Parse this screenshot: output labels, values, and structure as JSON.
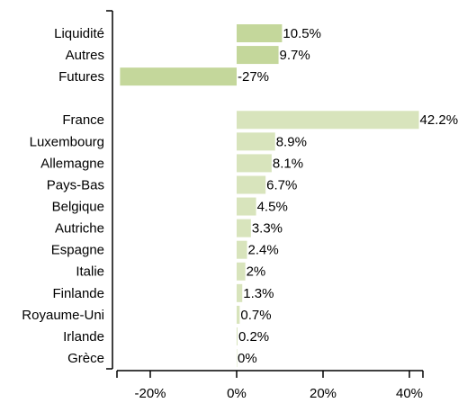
{
  "chart_data": {
    "type": "bar",
    "orientation": "horizontal",
    "categories": [
      "Liquidité",
      "Autres",
      "Futures",
      null,
      "France",
      "Luxembourg",
      "Allemagne",
      "Pays-Bas",
      "Belgique",
      "Autriche",
      "Espagne",
      "Italie",
      "Finlande",
      "Royaume-Uni",
      "Irlande",
      "Grèce"
    ],
    "values": [
      10.5,
      9.7,
      -27,
      null,
      42.2,
      8.9,
      8.1,
      6.7,
      4.5,
      3.3,
      2.4,
      2,
      1.3,
      0.7,
      0.2,
      0
    ],
    "value_labels": [
      "10.5%",
      "9.7%",
      "-27%",
      null,
      "42.2%",
      "8.9%",
      "8.1%",
      "6.7%",
      "4.5%",
      "3.3%",
      "2.4%",
      "2%",
      "1.3%",
      "0.7%",
      "0.2%",
      "0%"
    ],
    "colors": [
      "#c4d79b",
      "#c4d79b",
      "#c4d79b",
      null,
      "#d8e4bc",
      "#d8e4bc",
      "#d8e4bc",
      "#d8e4bc",
      "#d8e4bc",
      "#d8e4bc",
      "#d8e4bc",
      "#d8e4bc",
      "#d8e4bc",
      "#d8e4bc",
      "#d8e4bc",
      "#d8e4bc"
    ],
    "xlim": [
      -28,
      43
    ],
    "xticks": [
      {
        "value": -20,
        "label": "-20%"
      },
      {
        "value": 0,
        "label": "0%"
      },
      {
        "value": 20,
        "label": "20%"
      },
      {
        "value": 40,
        "label": "40%"
      }
    ]
  }
}
